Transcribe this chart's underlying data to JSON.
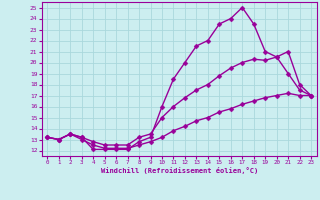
{
  "xlabel": "Windchill (Refroidissement éolien,°C)",
  "xlim": [
    -0.5,
    23.5
  ],
  "ylim": [
    11.5,
    25.5
  ],
  "xticks": [
    0,
    1,
    2,
    3,
    4,
    5,
    6,
    7,
    8,
    9,
    10,
    11,
    12,
    13,
    14,
    15,
    16,
    17,
    18,
    19,
    20,
    21,
    22,
    23
  ],
  "yticks": [
    12,
    13,
    14,
    15,
    16,
    17,
    18,
    19,
    20,
    21,
    22,
    23,
    24,
    25
  ],
  "background_color": "#cceef0",
  "grid_color": "#aad8dc",
  "line_color": "#990099",
  "line_width": 1.0,
  "marker": "D",
  "marker_size": 2.5,
  "curves": [
    {
      "x": [
        0,
        1,
        2,
        3,
        4,
        5,
        6,
        7,
        8,
        9,
        10,
        11,
        12,
        13,
        14,
        15,
        16,
        17,
        18,
        19,
        20,
        21,
        22,
        23
      ],
      "y": [
        13.2,
        13.0,
        13.5,
        13.2,
        12.1,
        12.1,
        12.1,
        12.1,
        12.8,
        13.2,
        16.0,
        18.5,
        20.0,
        21.5,
        22.0,
        23.5,
        24.0,
        25.0,
        23.5,
        21.0,
        20.5,
        21.0,
        18.0,
        17.0
      ]
    },
    {
      "x": [
        0,
        1,
        2,
        3,
        4,
        5,
        6,
        7,
        8,
        9,
        10,
        11,
        12,
        13,
        14,
        15,
        16,
        17,
        18,
        19,
        20,
        21,
        22,
        23
      ],
      "y": [
        13.2,
        13.0,
        13.5,
        13.2,
        12.8,
        12.5,
        12.5,
        12.5,
        13.2,
        13.5,
        15.0,
        16.0,
        16.8,
        17.5,
        18.0,
        18.8,
        19.5,
        20.0,
        20.3,
        20.2,
        20.5,
        19.0,
        17.5,
        17.0
      ]
    },
    {
      "x": [
        0,
        1,
        2,
        3,
        4,
        5,
        6,
        7,
        8,
        9,
        10,
        11,
        12,
        13,
        14,
        15,
        16,
        17,
        18,
        19,
        20,
        21,
        22,
        23
      ],
      "y": [
        13.2,
        13.0,
        13.5,
        13.0,
        12.5,
        12.2,
        12.2,
        12.2,
        12.5,
        12.8,
        13.2,
        13.8,
        14.2,
        14.7,
        15.0,
        15.5,
        15.8,
        16.2,
        16.5,
        16.8,
        17.0,
        17.2,
        17.0,
        17.0
      ]
    }
  ]
}
